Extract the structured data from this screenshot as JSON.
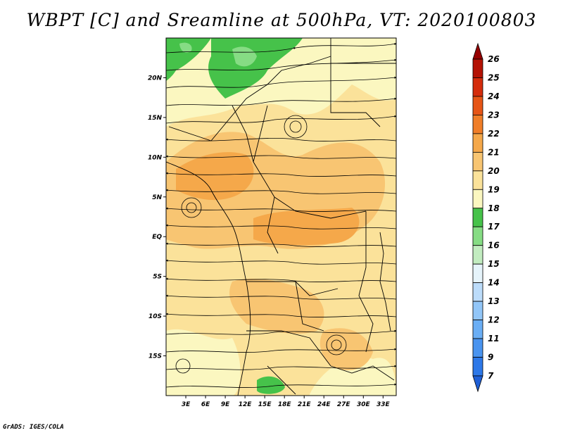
{
  "title": "WBPT [C] and Sreamline at 500hPa, VT: 2020100803",
  "credit": "GrADS: IGES/COLA",
  "map": {
    "lon_range": [
      0,
      35
    ],
    "lat_range": [
      -20,
      25
    ],
    "lat_ticks": [
      {
        "value": 20,
        "label": "20N"
      },
      {
        "value": 15,
        "label": "15N"
      },
      {
        "value": 10,
        "label": "10N"
      },
      {
        "value": 5,
        "label": "5N"
      },
      {
        "value": 0,
        "label": "EQ"
      },
      {
        "value": -5,
        "label": "5S"
      },
      {
        "value": -10,
        "label": "10S"
      },
      {
        "value": -15,
        "label": "15S"
      }
    ],
    "lon_ticks": [
      {
        "value": 3,
        "label": "3E"
      },
      {
        "value": 6,
        "label": "6E"
      },
      {
        "value": 9,
        "label": "9E"
      },
      {
        "value": 12,
        "label": "12E"
      },
      {
        "value": 15,
        "label": "15E"
      },
      {
        "value": 18,
        "label": "18E"
      },
      {
        "value": 21,
        "label": "21E"
      },
      {
        "value": 24,
        "label": "24E"
      },
      {
        "value": 27,
        "label": "27E"
      },
      {
        "value": 30,
        "label": "30E"
      },
      {
        "value": 33,
        "label": "33E"
      }
    ]
  },
  "colorbar": {
    "labels": [
      "7",
      "9",
      "11",
      "12",
      "13",
      "14",
      "15",
      "16",
      "17",
      "18",
      "19",
      "20",
      "21",
      "22",
      "23",
      "24",
      "25",
      "26"
    ],
    "colors": [
      "#1f5fd6",
      "#2d78e8",
      "#4a94f0",
      "#6aaef5",
      "#92c6f8",
      "#bcdcfa",
      "#e6f4fb",
      "#c2ecc0",
      "#86dc84",
      "#46c24a",
      "#fbf7c0",
      "#fbe29a",
      "#f8c572",
      "#f5a84a",
      "#f07e28",
      "#e65516",
      "#d42c0c",
      "#b41204",
      "#960000"
    ]
  }
}
